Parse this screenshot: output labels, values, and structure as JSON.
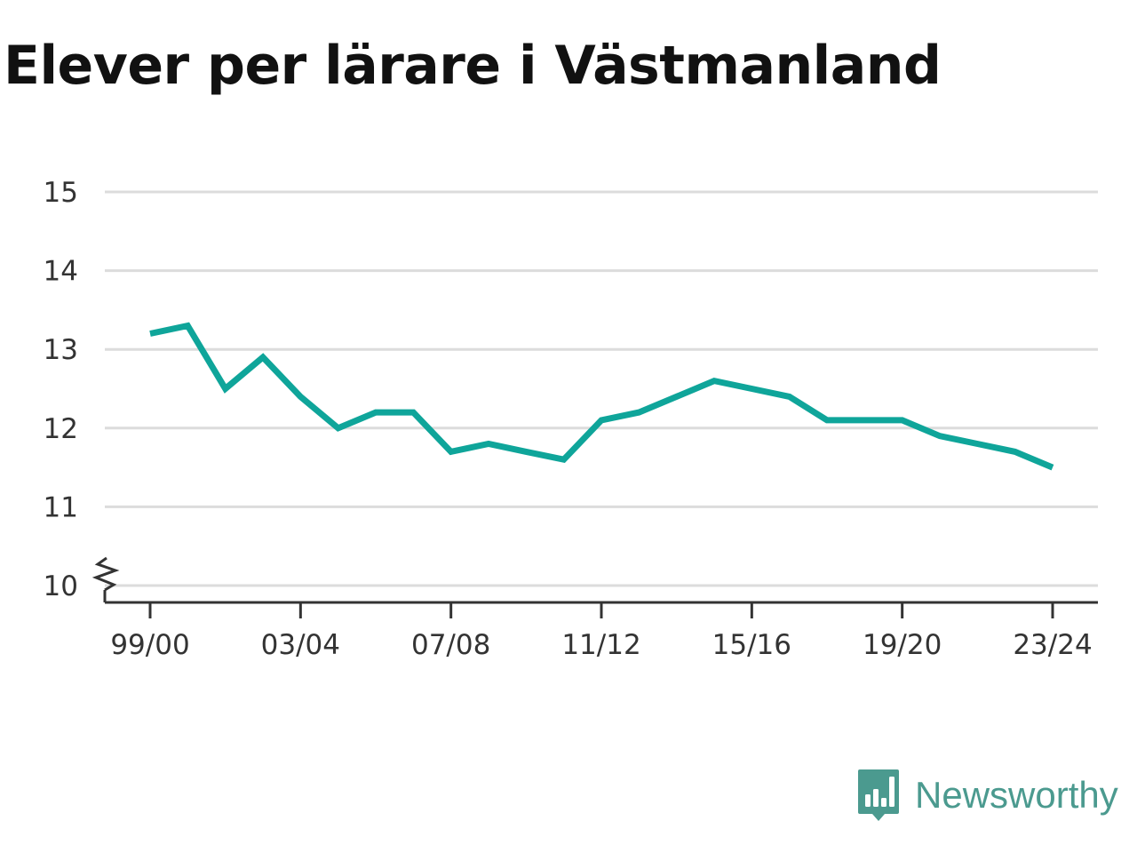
{
  "title": "Elever per lärare i Västmanland",
  "brand": {
    "name": "Newsworthy",
    "icon": "newsworthy-logo-icon",
    "color": "#4b9a8f"
  },
  "chart_data": {
    "type": "line",
    "title": "Elever per lärare i Västmanland",
    "xlabel": "",
    "ylabel": "",
    "x": [
      "99/00",
      "00/01",
      "01/02",
      "02/03",
      "03/04",
      "04/05",
      "05/06",
      "06/07",
      "07/08",
      "08/09",
      "09/10",
      "10/11",
      "11/12",
      "12/13",
      "13/14",
      "14/15",
      "15/16",
      "16/17",
      "17/18",
      "18/19",
      "19/20",
      "20/21",
      "21/22",
      "22/23",
      "23/24"
    ],
    "x_tick_labels": [
      "99/00",
      "03/04",
      "07/08",
      "11/12",
      "15/16",
      "19/20",
      "23/24"
    ],
    "series": [
      {
        "color": "#0fa59a",
        "values": [
          13.2,
          13.3,
          12.5,
          12.9,
          12.4,
          12.0,
          12.2,
          12.2,
          11.7,
          11.8,
          11.7,
          11.6,
          12.1,
          12.2,
          12.4,
          12.6,
          12.5,
          12.4,
          12.1,
          12.1,
          12.1,
          11.9,
          11.8,
          11.7,
          11.5
        ]
      }
    ],
    "ylim": [
      10,
      15
    ],
    "y_ticks": [
      10,
      11,
      12,
      13,
      14,
      15
    ],
    "axis_break": true,
    "grid": true,
    "legend": "none"
  }
}
